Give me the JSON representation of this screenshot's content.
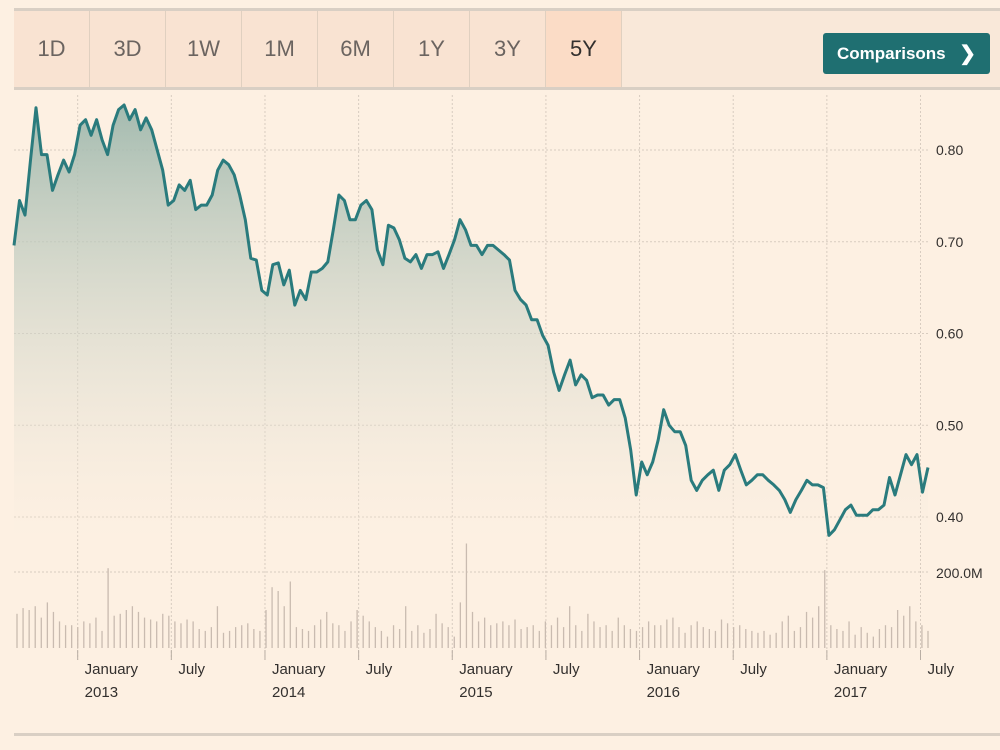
{
  "toolbar": {
    "ranges": [
      "1D",
      "3D",
      "1W",
      "1M",
      "6M",
      "1Y",
      "3Y",
      "5Y"
    ],
    "selected": "5Y",
    "comparisons_label": "Comparisons",
    "chevron": "❯"
  },
  "colors": {
    "line": "#2a7b7d",
    "fill_top": "#9fb8ad",
    "volume": "#c9bbb0",
    "button": "#1f6f71",
    "background": "#fdf0e2"
  },
  "chart_data": {
    "type": "area",
    "title": "",
    "x_start": 2012.66,
    "x_end": 2017.54,
    "ylim": [
      0.36,
      0.86
    ],
    "y_ticks": [
      {
        "v": 0.8,
        "label": "0.80"
      },
      {
        "v": 0.7,
        "label": "0.70"
      },
      {
        "v": 0.6,
        "label": "0.60"
      },
      {
        "v": 0.5,
        "label": "0.50"
      },
      {
        "v": 0.4,
        "label": "0.40"
      }
    ],
    "x_ticks": [
      {
        "t": 2013.0,
        "label": "January",
        "year": "2013"
      },
      {
        "t": 2013.5,
        "label": "July",
        "year": ""
      },
      {
        "t": 2014.0,
        "label": "January",
        "year": "2014"
      },
      {
        "t": 2014.5,
        "label": "July",
        "year": ""
      },
      {
        "t": 2015.0,
        "label": "January",
        "year": "2015"
      },
      {
        "t": 2015.5,
        "label": "July",
        "year": ""
      },
      {
        "t": 2016.0,
        "label": "January",
        "year": "2016"
      },
      {
        "t": 2016.5,
        "label": "July",
        "year": ""
      },
      {
        "t": 2017.0,
        "label": "January",
        "year": "2017"
      },
      {
        "t": 2017.5,
        "label": "July",
        "year": ""
      }
    ],
    "price": [
      0.696,
      0.745,
      0.729,
      0.789,
      0.846,
      0.795,
      0.795,
      0.756,
      0.773,
      0.789,
      0.776,
      0.795,
      0.827,
      0.833,
      0.816,
      0.833,
      0.811,
      0.795,
      0.827,
      0.844,
      0.849,
      0.833,
      0.844,
      0.822,
      0.835,
      0.822,
      0.8,
      0.778,
      0.74,
      0.745,
      0.762,
      0.756,
      0.767,
      0.735,
      0.74,
      0.74,
      0.751,
      0.778,
      0.789,
      0.784,
      0.773,
      0.751,
      0.724,
      0.682,
      0.68,
      0.647,
      0.642,
      0.675,
      0.677,
      0.653,
      0.669,
      0.631,
      0.647,
      0.637,
      0.667,
      0.667,
      0.671,
      0.678,
      0.713,
      0.751,
      0.745,
      0.724,
      0.724,
      0.74,
      0.745,
      0.735,
      0.691,
      0.675,
      0.718,
      0.715,
      0.702,
      0.682,
      0.678,
      0.686,
      0.671,
      0.686,
      0.686,
      0.689,
      0.671,
      0.686,
      0.702,
      0.724,
      0.713,
      0.696,
      0.696,
      0.686,
      0.696,
      0.696,
      0.691,
      0.686,
      0.68,
      0.647,
      0.637,
      0.631,
      0.615,
      0.615,
      0.598,
      0.587,
      0.558,
      0.538,
      0.555,
      0.571,
      0.544,
      0.555,
      0.549,
      0.53,
      0.533,
      0.533,
      0.522,
      0.528,
      0.528,
      0.508,
      0.473,
      0.424,
      0.46,
      0.446,
      0.46,
      0.484,
      0.517,
      0.5,
      0.493,
      0.493,
      0.478,
      0.44,
      0.429,
      0.44,
      0.446,
      0.451,
      0.429,
      0.451,
      0.457,
      0.468,
      0.451,
      0.435,
      0.44,
      0.446,
      0.446,
      0.44,
      0.435,
      0.429,
      0.419,
      0.405,
      0.419,
      0.429,
      0.44,
      0.435,
      0.435,
      0.432,
      0.38,
      0.386,
      0.397,
      0.408,
      0.413,
      0.402,
      0.402,
      0.402,
      0.408,
      0.408,
      0.413,
      0.443,
      0.424,
      0.446,
      0.468,
      0.457,
      0.468,
      0.427,
      0.454
    ],
    "volume_axis": {
      "max_label": "200.0M",
      "max_value": 200
    },
    "volume_millions": [
      90,
      105,
      100,
      110,
      80,
      120,
      95,
      70,
      60,
      60,
      55,
      70,
      65,
      80,
      45,
      210,
      85,
      90,
      100,
      110,
      95,
      80,
      75,
      70,
      90,
      85,
      70,
      65,
      75,
      70,
      50,
      45,
      55,
      110,
      40,
      45,
      55,
      60,
      65,
      50,
      45,
      100,
      160,
      150,
      110,
      175,
      55,
      50,
      45,
      60,
      75,
      95,
      65,
      60,
      45,
      70,
      100,
      85,
      70,
      55,
      45,
      30,
      60,
      50,
      110,
      45,
      60,
      40,
      50,
      90,
      65,
      55,
      30,
      120,
      275,
      95,
      70,
      80,
      60,
      65,
      70,
      60,
      75,
      50,
      55,
      60,
      45,
      70,
      60,
      80,
      55,
      110,
      60,
      45,
      90,
      70,
      55,
      60,
      45,
      80,
      60,
      50,
      45,
      55,
      70,
      60,
      60,
      75,
      80,
      55,
      40,
      60,
      70,
      55,
      50,
      45,
      75,
      65,
      55,
      60,
      50,
      45,
      40,
      45,
      35,
      40,
      70,
      85,
      45,
      55,
      95,
      80,
      110,
      205,
      60,
      50,
      45,
      70,
      35,
      55,
      40,
      30,
      50,
      60,
      55,
      100,
      85,
      110,
      70,
      60,
      45
    ]
  }
}
